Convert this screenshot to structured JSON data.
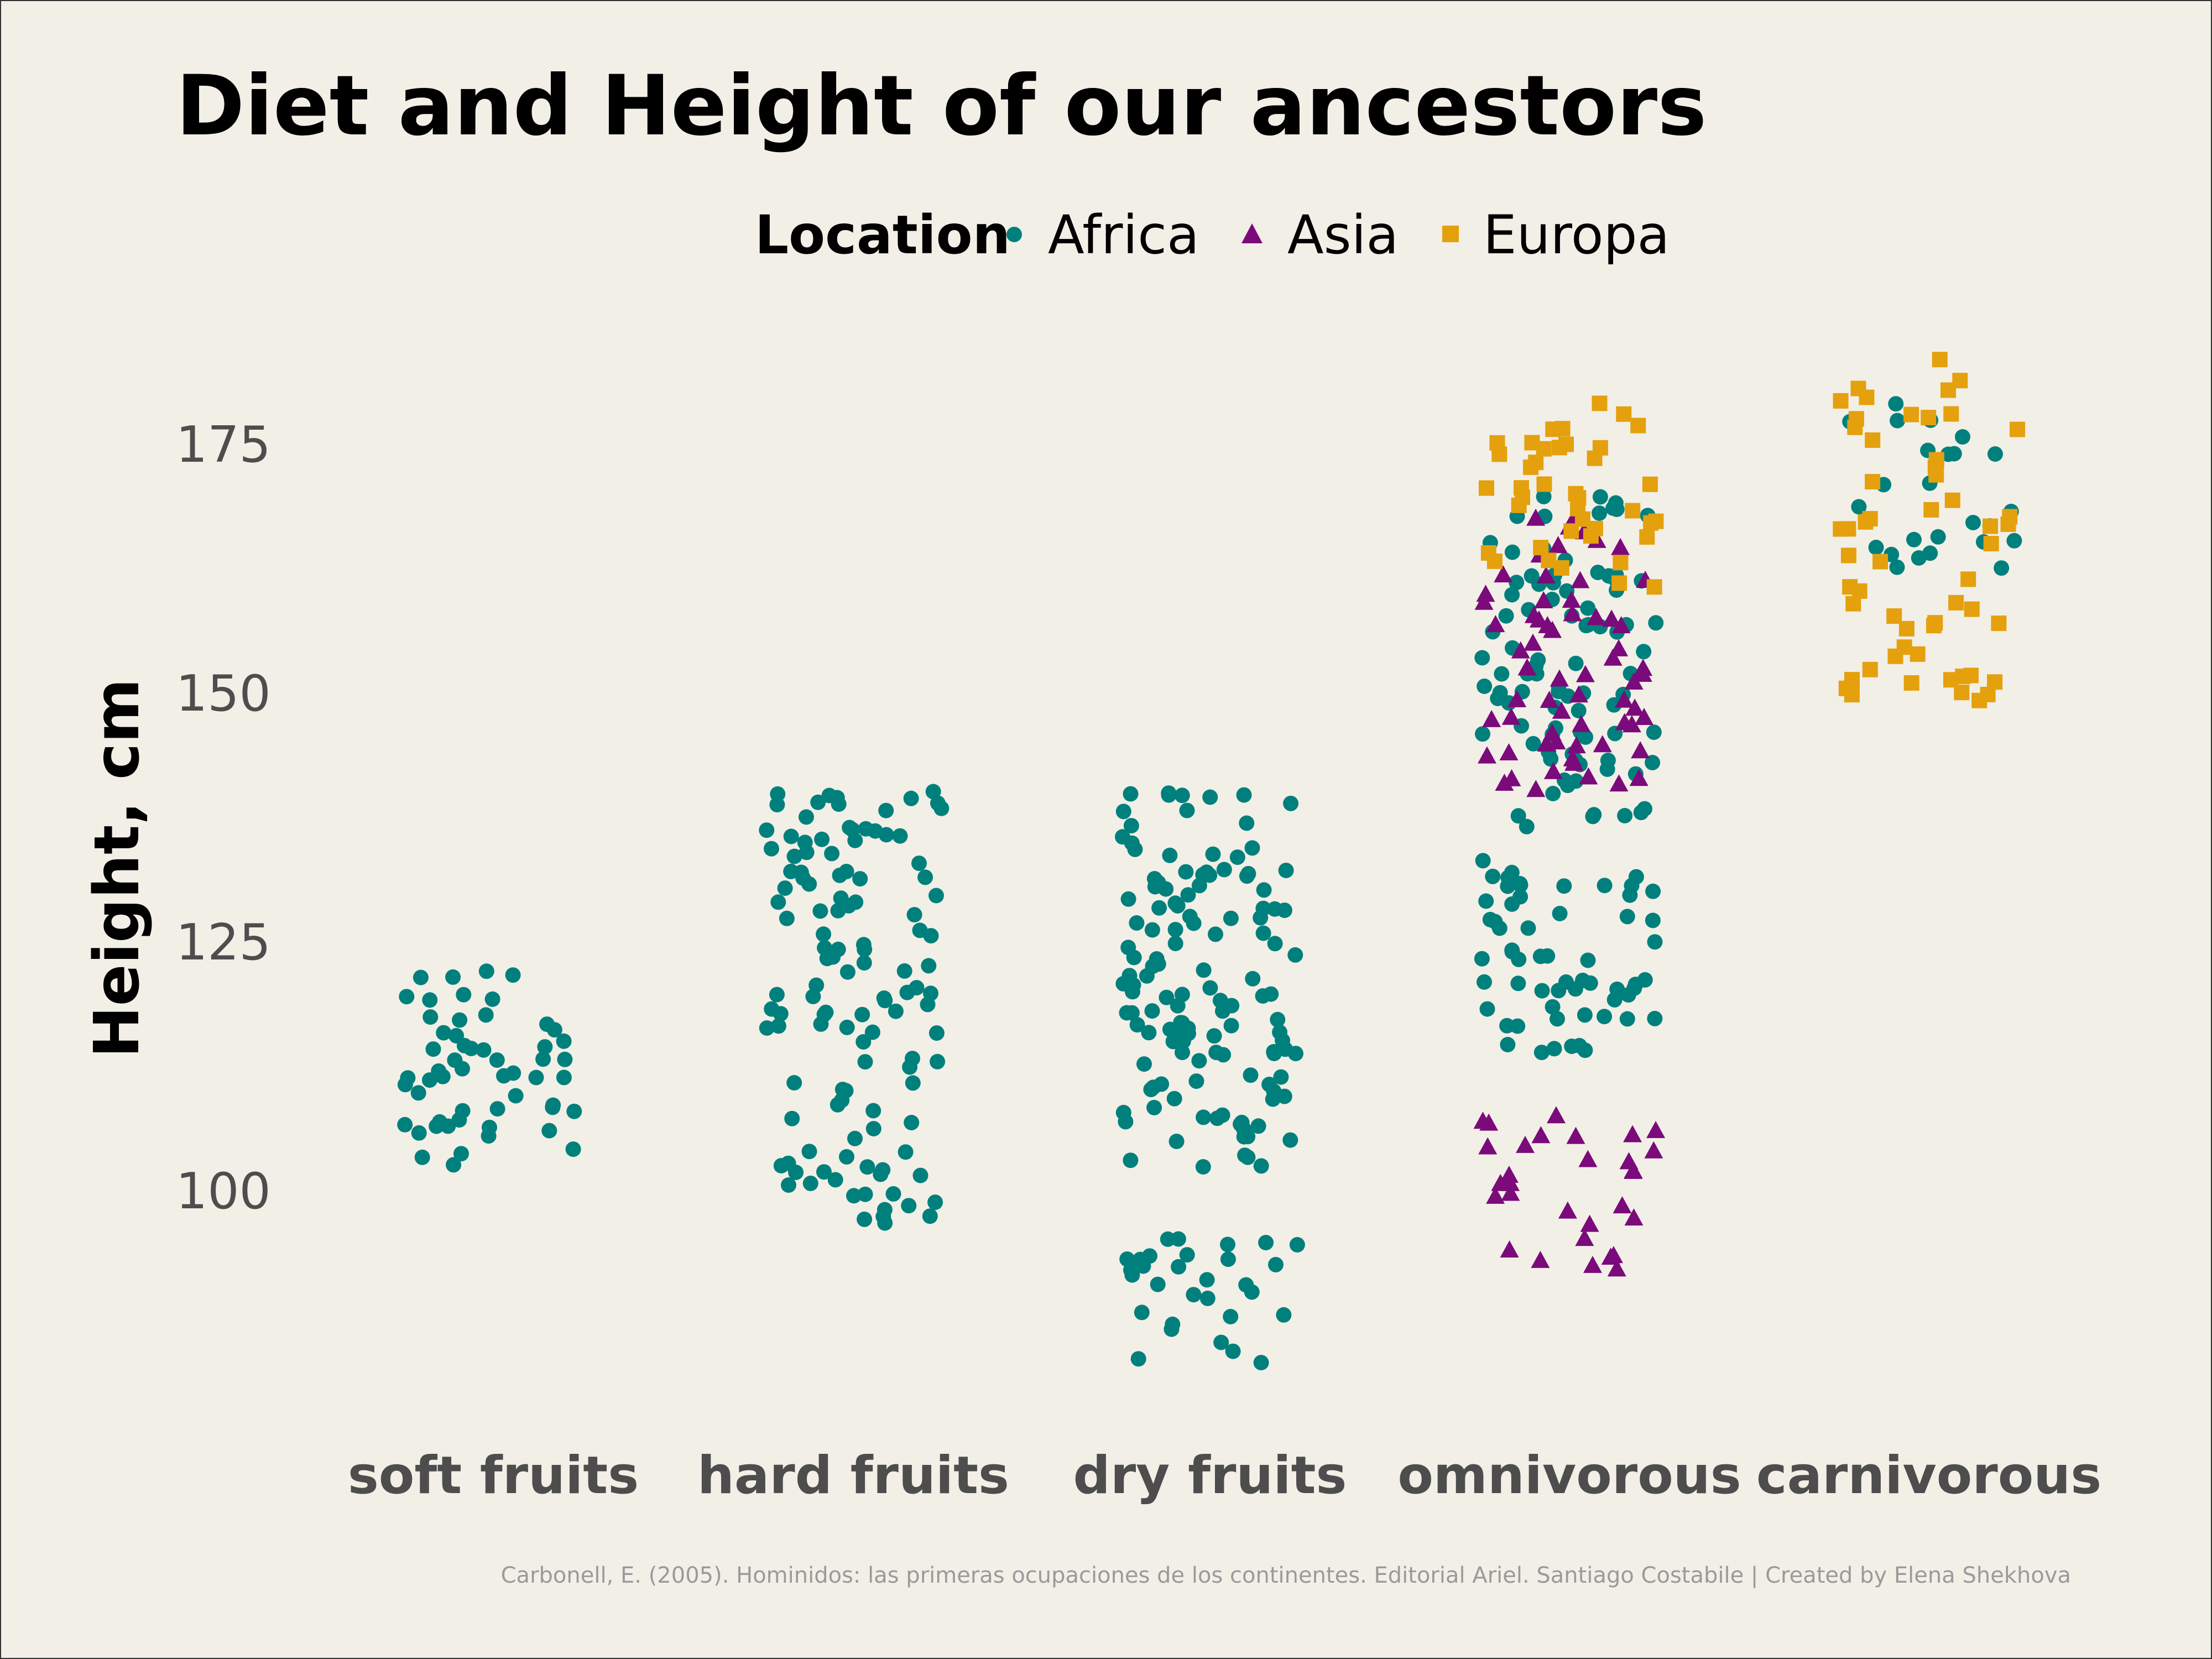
{
  "chart_data": {
    "type": "scatter",
    "subtype": "jitter-strip",
    "title": "Diet and Height of our ancestors",
    "ylabel": "Height, cm",
    "xlabel": "",
    "categories": [
      "soft fruits",
      "hard fruits",
      "dry fruits",
      "omnivorous",
      "carnivorous"
    ],
    "yticks": [
      100,
      125,
      150,
      175
    ],
    "ylim": [
      80,
      185
    ],
    "grid": false,
    "legend": {
      "title": "Location",
      "position": "top",
      "entries": [
        {
          "label": "Africa",
          "shape": "circle",
          "color": "#00807c"
        },
        {
          "label": "Asia",
          "shape": "triangle",
          "color": "#7b0a7b"
        },
        {
          "label": "Europa",
          "shape": "square",
          "color": "#e5a00d"
        }
      ]
    },
    "caption": "Carbonell, E. (2005). Hominidos: las primeras ocupaciones de los continentes. Editorial Ariel. Santiago Costabile | Created by Elena Shekhova",
    "series": [
      {
        "name": "Africa",
        "groups": [
          {
            "category": "soft fruits",
            "y_min": 102,
            "y_max": 122,
            "count": 55
          },
          {
            "category": "hard fruits",
            "y_min": 96,
            "y_max": 140,
            "count": 120
          },
          {
            "category": "dry fruits",
            "y_min": 102,
            "y_max": 140,
            "count": 130
          },
          {
            "category": "dry fruits",
            "y_min": 82,
            "y_max": 95,
            "count": 30
          },
          {
            "category": "omnivorous",
            "y_min": 113,
            "y_max": 133,
            "count": 60
          },
          {
            "category": "omnivorous",
            "y_min": 136,
            "y_max": 170,
            "count": 90
          },
          {
            "category": "carnivorous",
            "y_min": 160,
            "y_max": 179,
            "count": 25
          }
        ]
      },
      {
        "name": "Asia",
        "groups": [
          {
            "category": "omnivorous",
            "y_min": 140,
            "y_max": 168,
            "count": 65
          },
          {
            "category": "omnivorous",
            "y_min": 91,
            "y_max": 110,
            "count": 30
          }
        ]
      },
      {
        "name": "Europa",
        "groups": [
          {
            "category": "omnivorous",
            "y_min": 160,
            "y_max": 179,
            "count": 40
          },
          {
            "category": "carnivorous",
            "y_min": 148,
            "y_max": 184,
            "count": 55
          }
        ]
      }
    ]
  }
}
